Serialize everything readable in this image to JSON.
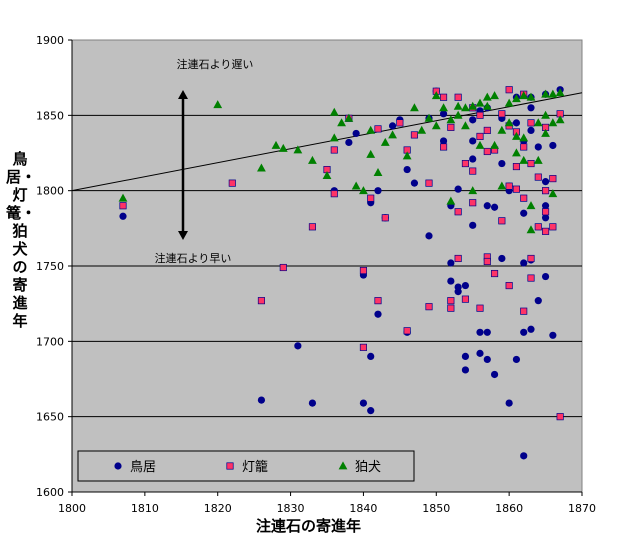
{
  "chart_data": {
    "type": "scatter",
    "xlabel": "注連石の寄進年",
    "ylabel": "鳥居・灯篭・狛犬の寄進年",
    "xlim": [
      1800,
      1870
    ],
    "ylim": [
      1600,
      1900
    ],
    "xticks": [
      1800,
      1810,
      1820,
      1830,
      1840,
      1850,
      1860,
      1870
    ],
    "yticks": [
      1600,
      1650,
      1700,
      1750,
      1800,
      1850,
      1900
    ],
    "grid": "horizontal",
    "background": "#c0c0c0",
    "legend_position": "bottom-left",
    "reference_line": {
      "x": [
        1800,
        1870
      ],
      "y": [
        1800,
        1865
      ]
    },
    "annotations": {
      "late": "注連石より遅い",
      "early": "注連石より早い"
    },
    "series": [
      {
        "name": "鳥居",
        "marker": "circle",
        "color": "#00008b",
        "points": [
          [
            1807,
            1783
          ],
          [
            1826,
            1661
          ],
          [
            1831,
            1697
          ],
          [
            1833,
            1659
          ],
          [
            1836,
            1800
          ],
          [
            1838,
            1832
          ],
          [
            1839,
            1838
          ],
          [
            1840,
            1659
          ],
          [
            1840,
            1744
          ],
          [
            1841,
            1690
          ],
          [
            1841,
            1654
          ],
          [
            1841,
            1792
          ],
          [
            1842,
            1800
          ],
          [
            1842,
            1718
          ],
          [
            1843,
            1782
          ],
          [
            1844,
            1843
          ],
          [
            1845,
            1847
          ],
          [
            1846,
            1706
          ],
          [
            1846,
            1814
          ],
          [
            1847,
            1805
          ],
          [
            1849,
            1770
          ],
          [
            1849,
            1848
          ],
          [
            1850,
            1866
          ],
          [
            1851,
            1833
          ],
          [
            1851,
            1851
          ],
          [
            1852,
            1752
          ],
          [
            1852,
            1740
          ],
          [
            1852,
            1790
          ],
          [
            1853,
            1736
          ],
          [
            1853,
            1733
          ],
          [
            1853,
            1801
          ],
          [
            1854,
            1690
          ],
          [
            1854,
            1681
          ],
          [
            1854,
            1737
          ],
          [
            1855,
            1821
          ],
          [
            1855,
            1833
          ],
          [
            1855,
            1777
          ],
          [
            1855,
            1847
          ],
          [
            1856,
            1706
          ],
          [
            1856,
            1692
          ],
          [
            1856,
            1853
          ],
          [
            1857,
            1706
          ],
          [
            1857,
            1790
          ],
          [
            1857,
            1688
          ],
          [
            1857,
            1855
          ],
          [
            1858,
            1678
          ],
          [
            1858,
            1789
          ],
          [
            1859,
            1755
          ],
          [
            1859,
            1848
          ],
          [
            1859,
            1818
          ],
          [
            1860,
            1803
          ],
          [
            1860,
            1659
          ],
          [
            1860,
            1800
          ],
          [
            1861,
            1862
          ],
          [
            1861,
            1688
          ],
          [
            1861,
            1845
          ],
          [
            1862,
            1624
          ],
          [
            1862,
            1706
          ],
          [
            1862,
            1752
          ],
          [
            1862,
            1785
          ],
          [
            1862,
            1833
          ],
          [
            1863,
            1862
          ],
          [
            1863,
            1754
          ],
          [
            1863,
            1708
          ],
          [
            1863,
            1840
          ],
          [
            1863,
            1855
          ],
          [
            1864,
            1727
          ],
          [
            1864,
            1829
          ],
          [
            1865,
            1864
          ],
          [
            1865,
            1743
          ],
          [
            1865,
            1790
          ],
          [
            1865,
            1782
          ],
          [
            1865,
            1806
          ],
          [
            1866,
            1704
          ],
          [
            1866,
            1830
          ],
          [
            1867,
            1867
          ]
        ]
      },
      {
        "name": "灯籠",
        "marker": "square",
        "color": "#ff3366",
        "points": [
          [
            1807,
            1790
          ],
          [
            1822,
            1805
          ],
          [
            1826,
            1727
          ],
          [
            1829,
            1749
          ],
          [
            1833,
            1776
          ],
          [
            1835,
            1814
          ],
          [
            1836,
            1798
          ],
          [
            1836,
            1827
          ],
          [
            1838,
            1848
          ],
          [
            1840,
            1696
          ],
          [
            1840,
            1747
          ],
          [
            1841,
            1795
          ],
          [
            1842,
            1727
          ],
          [
            1842,
            1841
          ],
          [
            1843,
            1782
          ],
          [
            1845,
            1845
          ],
          [
            1846,
            1707
          ],
          [
            1846,
            1827
          ],
          [
            1847,
            1837
          ],
          [
            1849,
            1723
          ],
          [
            1849,
            1805
          ],
          [
            1850,
            1866
          ],
          [
            1851,
            1862
          ],
          [
            1851,
            1829
          ],
          [
            1852,
            1727
          ],
          [
            1852,
            1842
          ],
          [
            1852,
            1722
          ],
          [
            1853,
            1786
          ],
          [
            1853,
            1755
          ],
          [
            1853,
            1862
          ],
          [
            1854,
            1728
          ],
          [
            1854,
            1818
          ],
          [
            1855,
            1855
          ],
          [
            1855,
            1792
          ],
          [
            1855,
            1813
          ],
          [
            1856,
            1722
          ],
          [
            1856,
            1836
          ],
          [
            1856,
            1850
          ],
          [
            1857,
            1756
          ],
          [
            1857,
            1753
          ],
          [
            1857,
            1840
          ],
          [
            1857,
            1826
          ],
          [
            1858,
            1745
          ],
          [
            1858,
            1827
          ],
          [
            1859,
            1780
          ],
          [
            1859,
            1851
          ],
          [
            1860,
            1867
          ],
          [
            1860,
            1803
          ],
          [
            1860,
            1737
          ],
          [
            1860,
            1843
          ],
          [
            1861,
            1816
          ],
          [
            1861,
            1801
          ],
          [
            1861,
            1839
          ],
          [
            1862,
            1720
          ],
          [
            1862,
            1795
          ],
          [
            1862,
            1829
          ],
          [
            1862,
            1864
          ],
          [
            1863,
            1755
          ],
          [
            1863,
            1742
          ],
          [
            1863,
            1818
          ],
          [
            1863,
            1845
          ],
          [
            1864,
            1776
          ],
          [
            1864,
            1809
          ],
          [
            1865,
            1773
          ],
          [
            1865,
            1800
          ],
          [
            1865,
            1786
          ],
          [
            1865,
            1842
          ],
          [
            1866,
            1776
          ],
          [
            1866,
            1808
          ],
          [
            1867,
            1650
          ],
          [
            1867,
            1851
          ]
        ]
      },
      {
        "name": "狛犬",
        "marker": "triangle",
        "color": "#008000",
        "points": [
          [
            1807,
            1795
          ],
          [
            1820,
            1857
          ],
          [
            1826,
            1815
          ],
          [
            1828,
            1830
          ],
          [
            1829,
            1828
          ],
          [
            1831,
            1827
          ],
          [
            1833,
            1820
          ],
          [
            1835,
            1810
          ],
          [
            1836,
            1852
          ],
          [
            1836,
            1835
          ],
          [
            1837,
            1845
          ],
          [
            1838,
            1848
          ],
          [
            1839,
            1803
          ],
          [
            1840,
            1800
          ],
          [
            1841,
            1824
          ],
          [
            1841,
            1840
          ],
          [
            1842,
            1812
          ],
          [
            1843,
            1832
          ],
          [
            1844,
            1837
          ],
          [
            1846,
            1823
          ],
          [
            1847,
            1855
          ],
          [
            1848,
            1840
          ],
          [
            1849,
            1848
          ],
          [
            1850,
            1863
          ],
          [
            1850,
            1843
          ],
          [
            1851,
            1855
          ],
          [
            1852,
            1793
          ],
          [
            1852,
            1847
          ],
          [
            1853,
            1850
          ],
          [
            1853,
            1856
          ],
          [
            1854,
            1855
          ],
          [
            1854,
            1843
          ],
          [
            1855,
            1856
          ],
          [
            1855,
            1800
          ],
          [
            1856,
            1858
          ],
          [
            1856,
            1830
          ],
          [
            1857,
            1862
          ],
          [
            1857,
            1856
          ],
          [
            1858,
            1863
          ],
          [
            1858,
            1830
          ],
          [
            1859,
            1803
          ],
          [
            1859,
            1840
          ],
          [
            1860,
            1858
          ],
          [
            1860,
            1845
          ],
          [
            1861,
            1861
          ],
          [
            1861,
            1825
          ],
          [
            1861,
            1836
          ],
          [
            1862,
            1863
          ],
          [
            1862,
            1835
          ],
          [
            1862,
            1820
          ],
          [
            1863,
            1862
          ],
          [
            1863,
            1790
          ],
          [
            1863,
            1774
          ],
          [
            1864,
            1845
          ],
          [
            1864,
            1820
          ],
          [
            1865,
            1850
          ],
          [
            1865,
            1864
          ],
          [
            1865,
            1838
          ],
          [
            1866,
            1798
          ],
          [
            1866,
            1845
          ],
          [
            1866,
            1864
          ],
          [
            1867,
            1865
          ],
          [
            1867,
            1847
          ]
        ]
      }
    ]
  }
}
